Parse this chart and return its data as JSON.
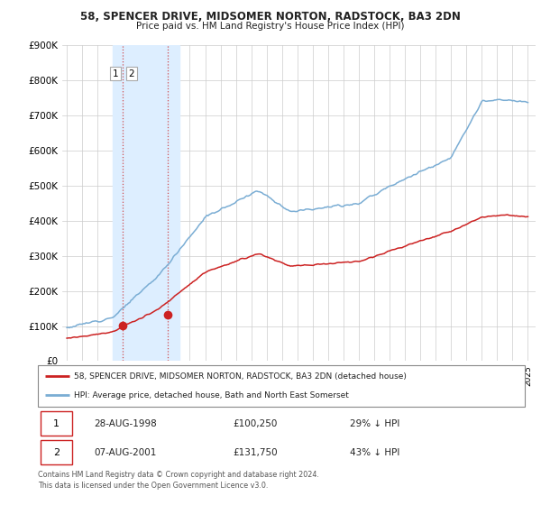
{
  "title1": "58, SPENCER DRIVE, MIDSOMER NORTON, RADSTOCK, BA3 2DN",
  "title2": "Price paid vs. HM Land Registry's House Price Index (HPI)",
  "ylim": [
    0,
    900000
  ],
  "yticks": [
    0,
    100000,
    200000,
    300000,
    400000,
    500000,
    600000,
    700000,
    800000,
    900000
  ],
  "ytick_labels": [
    "£0",
    "£100K",
    "£200K",
    "£300K",
    "£400K",
    "£500K",
    "£600K",
    "£700K",
    "£800K",
    "£900K"
  ],
  "sale1_date": 1998.65,
  "sale1_price": 100250,
  "sale1_label": "1",
  "sale2_date": 2001.59,
  "sale2_price": 131750,
  "sale2_label": "2",
  "shaded_region_x1": 1998.0,
  "shaded_region_x2": 2002.3,
  "hpi_color": "#7aadd4",
  "price_color": "#cc2222",
  "shaded_color": "#ddeeff",
  "legend_line1": "58, SPENCER DRIVE, MIDSOMER NORTON, RADSTOCK, BA3 2DN (detached house)",
  "legend_line2": "HPI: Average price, detached house, Bath and North East Somerset",
  "table_row1": [
    "1",
    "28-AUG-1998",
    "£100,250",
    "29% ↓ HPI"
  ],
  "table_row2": [
    "2",
    "07-AUG-2001",
    "£131,750",
    "43% ↓ HPI"
  ],
  "footnote": "Contains HM Land Registry data © Crown copyright and database right 2024.\nThis data is licensed under the Open Government Licence v3.0.",
  "background_color": "#ffffff",
  "grid_color": "#cccccc",
  "xlim_min": 1994.7,
  "xlim_max": 2025.5
}
